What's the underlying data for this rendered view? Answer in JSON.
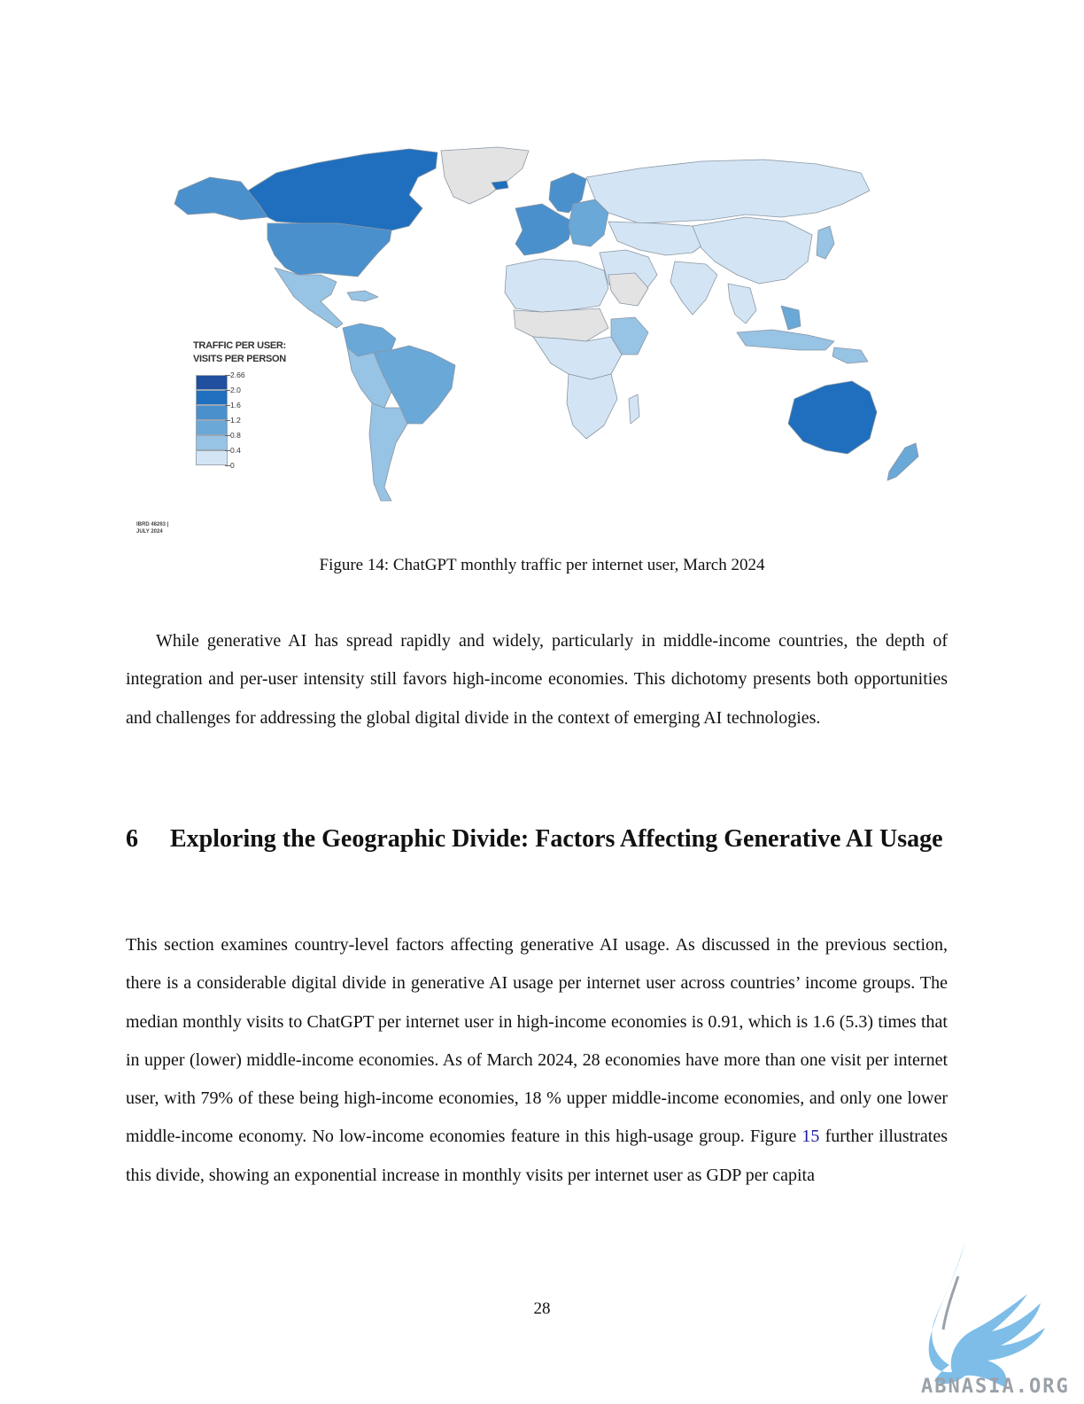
{
  "figure": {
    "legend_title_line1": "TRAFFIC PER USER:",
    "legend_title_line2": "VISITS PER PERSON",
    "legend_ticks": [
      "2.66",
      "2.0",
      "1.6",
      "1.2",
      "0.8",
      "0.4",
      "0"
    ],
    "legend_colors": [
      "#1f4f9e",
      "#1f6fbe",
      "#4a90cc",
      "#6aa8d8",
      "#97c3e4",
      "#d3e5f4"
    ],
    "map_id_line1": "IBRD 48263 |",
    "map_id_line2": "JULY 2024",
    "caption": "Figure 14: ChatGPT monthly traffic per internet user, March 2024"
  },
  "paragraph1": "While generative AI has spread rapidly and widely, particularly in middle-income countries, the depth of integration and per-user intensity still favors high-income economies. This dichotomy presents both opportunities and challenges for addressing the global digital divide in the context of emerging AI technologies.",
  "section": {
    "number": "6",
    "title": "Exploring the Geographic Divide: Factors Affecting Generative AI Usage"
  },
  "paragraph2": {
    "before_ref": "This section examines country-level factors affecting generative AI usage.  As discussed in the previous section, there is a considerable digital divide in generative AI usage per internet user across countries’ income groups. The median monthly visits to ChatGPT per internet user in high-income economies is 0.91, which is 1.6 (5.3) times that in upper (lower) middle-income economies. As of March 2024, 28 economies have more than one visit per internet user, with 79% of these being high-income economies, 18 % upper middle-income economies, and only one lower middle-income economy. No low-income economies feature in this high-usage group. Figure ",
    "ref": "15",
    "after_ref": " further illustrates this divide, showing an exponential increase in monthly visits per internet user as GDP per capita"
  },
  "page_number": "28",
  "watermark": "ABNASIA.ORG"
}
